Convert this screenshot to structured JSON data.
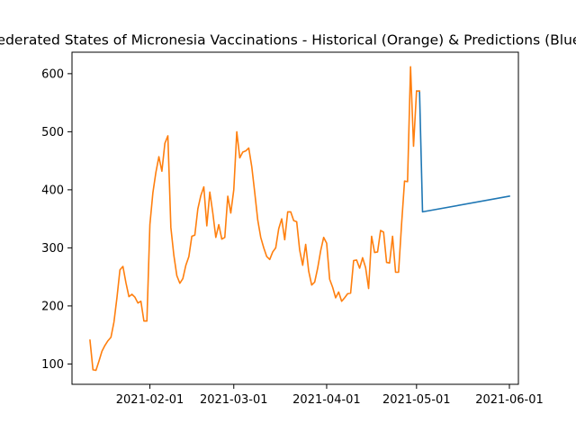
{
  "chart_data": {
    "type": "line",
    "title": "Federated States of Micronesia Vaccinations - Historical (Orange) & Predictions (Blue)",
    "xlabel": "",
    "ylabel": "",
    "xlim": [
      "2021-01-06",
      "2021-06-04"
    ],
    "ylim": [
      65,
      637
    ],
    "x_ticks": [
      "2021-02-01",
      "2021-03-01",
      "2021-04-01",
      "2021-05-01",
      "2021-06-01"
    ],
    "y_ticks": [
      100,
      200,
      300,
      400,
      500,
      600
    ],
    "grid": false,
    "series": [
      {
        "color": "#1f77b4",
        "points": [
          [
            "2021-05-01",
            570
          ],
          [
            "2021-05-02",
            570
          ],
          [
            "2021-05-03",
            362
          ],
          [
            "2021-06-01",
            389
          ]
        ]
      },
      {
        "color": "#ff7f0e",
        "points": [
          [
            "2021-01-12",
            141
          ],
          [
            "2021-01-13",
            90
          ],
          [
            "2021-01-14",
            89
          ],
          [
            "2021-01-15",
            105
          ],
          [
            "2021-01-16",
            122
          ],
          [
            "2021-01-17",
            132
          ],
          [
            "2021-01-18",
            140
          ],
          [
            "2021-01-19",
            146
          ],
          [
            "2021-01-20",
            172
          ],
          [
            "2021-01-21",
            214
          ],
          [
            "2021-01-22",
            262
          ],
          [
            "2021-01-23",
            268
          ],
          [
            "2021-01-24",
            240
          ],
          [
            "2021-01-25",
            216
          ],
          [
            "2021-01-26",
            220
          ],
          [
            "2021-01-27",
            215
          ],
          [
            "2021-01-28",
            205
          ],
          [
            "2021-01-29",
            208
          ],
          [
            "2021-01-30",
            174
          ],
          [
            "2021-01-31",
            174
          ],
          [
            "2021-02-01",
            340
          ],
          [
            "2021-02-02",
            395
          ],
          [
            "2021-02-03",
            430
          ],
          [
            "2021-02-04",
            457
          ],
          [
            "2021-02-05",
            432
          ],
          [
            "2021-02-06",
            480
          ],
          [
            "2021-02-07",
            493
          ],
          [
            "2021-02-08",
            335
          ],
          [
            "2021-02-09",
            287
          ],
          [
            "2021-02-10",
            252
          ],
          [
            "2021-02-11",
            239
          ],
          [
            "2021-02-12",
            247
          ],
          [
            "2021-02-13",
            270
          ],
          [
            "2021-02-14",
            285
          ],
          [
            "2021-02-15",
            320
          ],
          [
            "2021-02-16",
            322
          ],
          [
            "2021-02-17",
            367
          ],
          [
            "2021-02-18",
            390
          ],
          [
            "2021-02-19",
            405
          ],
          [
            "2021-02-20",
            338
          ],
          [
            "2021-02-21",
            396
          ],
          [
            "2021-02-22",
            360
          ],
          [
            "2021-02-23",
            318
          ],
          [
            "2021-02-24",
            340
          ],
          [
            "2021-02-25",
            315
          ],
          [
            "2021-02-26",
            318
          ],
          [
            "2021-02-27",
            389
          ],
          [
            "2021-02-28",
            360
          ],
          [
            "2021-03-01",
            400
          ],
          [
            "2021-03-02",
            500
          ],
          [
            "2021-03-03",
            455
          ],
          [
            "2021-03-04",
            465
          ],
          [
            "2021-03-05",
            467
          ],
          [
            "2021-03-06",
            472
          ],
          [
            "2021-03-07",
            440
          ],
          [
            "2021-03-08",
            395
          ],
          [
            "2021-03-09",
            348
          ],
          [
            "2021-03-10",
            318
          ],
          [
            "2021-03-11",
            300
          ],
          [
            "2021-03-12",
            285
          ],
          [
            "2021-03-13",
            280
          ],
          [
            "2021-03-14",
            293
          ],
          [
            "2021-03-15",
            300
          ],
          [
            "2021-03-16",
            333
          ],
          [
            "2021-03-17",
            350
          ],
          [
            "2021-03-18",
            314
          ],
          [
            "2021-03-19",
            362
          ],
          [
            "2021-03-20",
            362
          ],
          [
            "2021-03-21",
            347
          ],
          [
            "2021-03-22",
            345
          ],
          [
            "2021-03-23",
            296
          ],
          [
            "2021-03-24",
            270
          ],
          [
            "2021-03-25",
            306
          ],
          [
            "2021-03-26",
            260
          ],
          [
            "2021-03-27",
            236
          ],
          [
            "2021-03-28",
            241
          ],
          [
            "2021-03-29",
            265
          ],
          [
            "2021-03-30",
            295
          ],
          [
            "2021-03-31",
            318
          ],
          [
            "2021-04-01",
            308
          ],
          [
            "2021-04-02",
            246
          ],
          [
            "2021-04-03",
            232
          ],
          [
            "2021-04-04",
            214
          ],
          [
            "2021-04-05",
            224
          ],
          [
            "2021-04-06",
            208
          ],
          [
            "2021-04-07",
            214
          ],
          [
            "2021-04-08",
            221
          ],
          [
            "2021-04-09",
            222
          ],
          [
            "2021-04-10",
            278
          ],
          [
            "2021-04-11",
            279
          ],
          [
            "2021-04-12",
            265
          ],
          [
            "2021-04-13",
            283
          ],
          [
            "2021-04-14",
            266
          ],
          [
            "2021-04-15",
            230
          ],
          [
            "2021-04-16",
            320
          ],
          [
            "2021-04-17",
            292
          ],
          [
            "2021-04-18",
            293
          ],
          [
            "2021-04-19",
            330
          ],
          [
            "2021-04-20",
            327
          ],
          [
            "2021-04-21",
            275
          ],
          [
            "2021-04-22",
            274
          ],
          [
            "2021-04-23",
            320
          ],
          [
            "2021-04-24",
            258
          ],
          [
            "2021-04-25",
            258
          ],
          [
            "2021-04-26",
            340
          ],
          [
            "2021-04-27",
            415
          ],
          [
            "2021-04-28",
            414
          ],
          [
            "2021-04-29",
            612
          ],
          [
            "2021-04-30",
            475
          ],
          [
            "2021-05-01",
            570
          ],
          [
            "2021-05-02",
            570
          ]
        ]
      }
    ]
  }
}
